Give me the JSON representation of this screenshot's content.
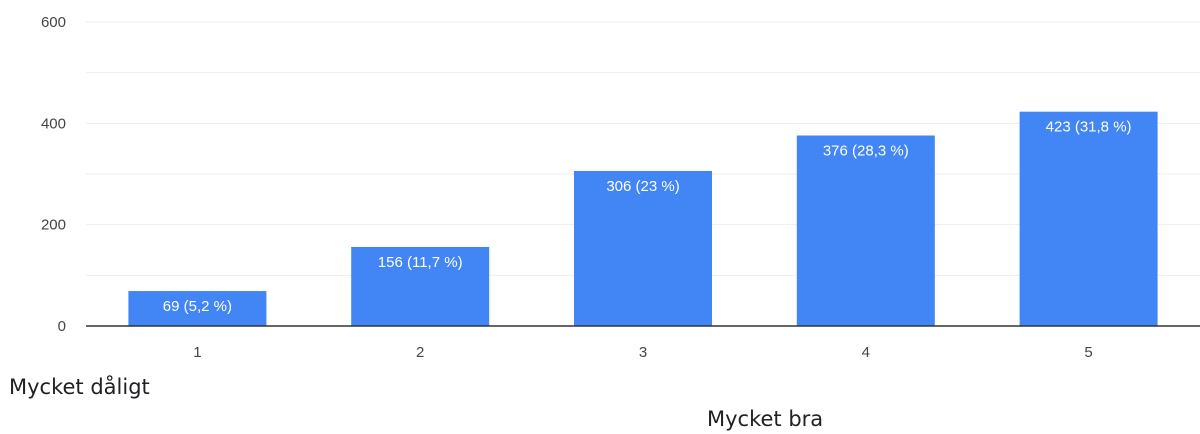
{
  "chart_data": {
    "type": "bar",
    "categories": [
      "1",
      "2",
      "3",
      "4",
      "5"
    ],
    "values": [
      69,
      156,
      306,
      376,
      423
    ],
    "data_labels": [
      "69 (5,2 %)",
      "156 (11,7 %)",
      "306 (23 %)",
      "376 (28,3 %)",
      "423 (31,8 %)"
    ],
    "y_ticks": [
      "0",
      "200",
      "400",
      "600"
    ],
    "ylim": [
      0,
      600
    ],
    "grid": true,
    "legend": "none",
    "bar_color": "#4285f4",
    "gridline_color": "#eeeeee",
    "axis_color": "#333333"
  },
  "scale_labels": {
    "low": "Mycket dåligt",
    "high": "Mycket bra"
  }
}
